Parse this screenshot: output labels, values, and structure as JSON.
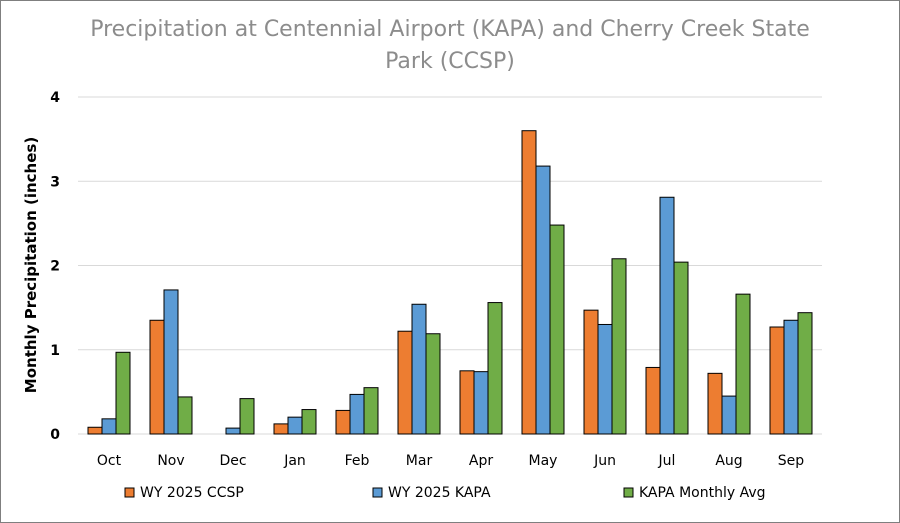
{
  "chart_data": {
    "type": "bar",
    "title_line1": "Precipitation at Centennial Airport (KAPA) and Cherry Creek State",
    "title_line2": "Park (CCSP)",
    "xlabel": "",
    "ylabel": "Monthly Precipitation  (inches)",
    "ylim": [
      0,
      4
    ],
    "yticks": [
      "0",
      "1",
      "2",
      "3",
      "4"
    ],
    "grid": true,
    "legend_position": "bottom",
    "categories": [
      "Oct",
      "Nov",
      "Dec",
      "Jan",
      "Feb",
      "Mar",
      "Apr",
      "May",
      "Jun",
      "Jul",
      "Aug",
      "Sep"
    ],
    "series": [
      {
        "name": "WY 2025 CCSP",
        "color": "#ed7d31",
        "values": [
          0.08,
          1.35,
          0.0,
          0.12,
          0.28,
          1.22,
          0.75,
          3.6,
          1.47,
          0.79,
          0.72,
          1.27
        ]
      },
      {
        "name": "WY 2025 KAPA",
        "color": "#5b9bd5",
        "values": [
          0.18,
          1.71,
          0.07,
          0.2,
          0.47,
          1.54,
          0.74,
          3.18,
          1.3,
          2.81,
          0.45,
          1.35
        ]
      },
      {
        "name": "KAPA Monthly Avg",
        "color": "#70ad47",
        "values": [
          0.97,
          0.44,
          0.42,
          0.29,
          0.55,
          1.19,
          1.56,
          2.48,
          2.08,
          2.04,
          1.66,
          1.44
        ]
      }
    ]
  }
}
